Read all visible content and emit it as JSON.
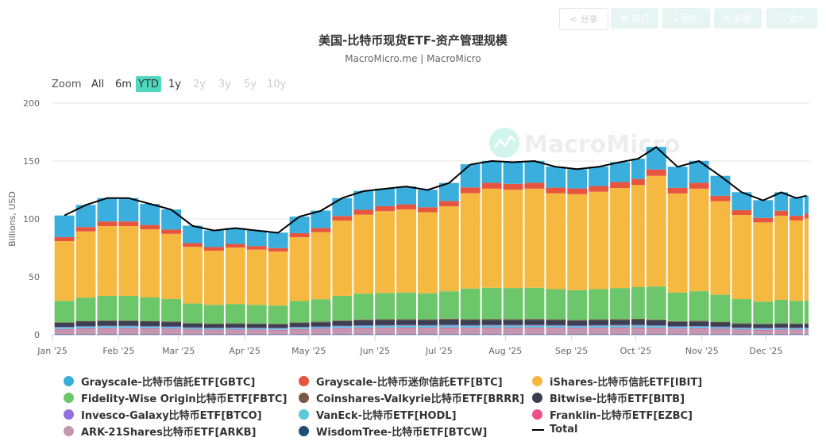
{
  "toolbar": {
    "share": "分享",
    "customize": "自订",
    "image": "图片",
    "draw": "制图",
    "enlarge": "放大"
  },
  "title": "美国-比特币现货ETF-资产管理规模",
  "subtitle": "MacroMicro.me | MacroMicro",
  "range_selector": {
    "label": "Zoom",
    "options": [
      "All",
      "6m",
      "YTD",
      "1y",
      "2y",
      "3y",
      "5y",
      "10y"
    ],
    "selected": "YTD",
    "disabled": [
      "2y",
      "3y",
      "5y",
      "10y"
    ]
  },
  "watermark": "MacroMicro",
  "chart_data": {
    "type": "bar",
    "stacked": true,
    "title": "美国-比特币现货ETF-资产管理规模",
    "ylabel": "Billions, USD",
    "ylim": [
      0,
      200
    ],
    "y_ticks": [
      0,
      50,
      100,
      150,
      200
    ],
    "x_tick_labels": [
      {
        "date": "2025-01-01",
        "label": "Jan '25"
      },
      {
        "date": "2025-02-01",
        "label": "Feb '25"
      },
      {
        "date": "2025-03-01",
        "label": "Mar '25"
      },
      {
        "date": "2025-04-01",
        "label": "Apr '25"
      },
      {
        "date": "2025-05-01",
        "label": "May '25"
      },
      {
        "date": "2025-06-01",
        "label": "Jun '25"
      },
      {
        "date": "2025-07-01",
        "label": "Jul '25"
      },
      {
        "date": "2025-08-01",
        "label": "Aug '25"
      },
      {
        "date": "2025-09-01",
        "label": "Sep '25"
      },
      {
        "date": "2025-10-01",
        "label": "Oct '25"
      },
      {
        "date": "2025-11-01",
        "label": "Nov '25"
      },
      {
        "date": "2025-12-01",
        "label": "Dec '25"
      }
    ],
    "grid": true,
    "legend_position": "bottom",
    "x": [
      "2025-01-02",
      "2025-01-12",
      "2025-01-22",
      "2025-02-01",
      "2025-02-11",
      "2025-02-21",
      "2025-03-03",
      "2025-03-13",
      "2025-03-23",
      "2025-04-02",
      "2025-04-12",
      "2025-04-22",
      "2025-05-02",
      "2025-05-12",
      "2025-05-22",
      "2025-06-01",
      "2025-06-11",
      "2025-06-21",
      "2025-07-01",
      "2025-07-11",
      "2025-07-21",
      "2025-07-31",
      "2025-08-10",
      "2025-08-20",
      "2025-08-30",
      "2025-09-09",
      "2025-09-19",
      "2025-09-29",
      "2025-10-06",
      "2025-10-16",
      "2025-10-26",
      "2025-11-05",
      "2025-11-15",
      "2025-11-25",
      "2025-12-05",
      "2025-12-12",
      "2025-12-19"
    ],
    "series": [
      {
        "name": "Grayscale-比特币信託ETF[GBTC]",
        "color": "#3aaedd",
        "values": [
          18.7,
          19.1,
          20.2,
          20.2,
          18.2,
          17.4,
          15.1,
          14.4,
          13.8,
          13.5,
          13.4,
          14.3,
          15.1,
          15.5,
          16.3,
          15.2,
          15.5,
          15.1,
          15.7,
          20.0,
          18.9,
          18.8,
          18.9,
          18.2,
          16.6,
          16.8,
          17.3,
          17.5,
          19.5,
          18.2,
          18.9,
          17.2,
          15.5,
          15.3,
          16.1,
          15.5,
          15.7
        ]
      },
      {
        "name": "Grayscale-比特币迷你信託ETF[BTC]",
        "color": "#e8553f",
        "values": [
          3.5,
          3.8,
          4.0,
          4.0,
          3.8,
          3.7,
          3.2,
          3.1,
          3.1,
          3.1,
          3.0,
          3.5,
          3.6,
          4.0,
          4.2,
          4.3,
          4.4,
          4.3,
          4.5,
          5.0,
          5.1,
          5.1,
          5.1,
          4.9,
          4.9,
          4.9,
          5.1,
          5.2,
          5.5,
          4.9,
          5.1,
          4.7,
          4.2,
          3.9,
          4.2,
          4.0,
          4.1
        ]
      },
      {
        "name": "iShares-比特币信託ETF[IBIT]",
        "color": "#f5b942",
        "values": [
          51.5,
          57.1,
          60.2,
          60.2,
          58.8,
          56.2,
          48.9,
          46.8,
          48.8,
          47.7,
          46.6,
          55.1,
          57.8,
          64.9,
          68.2,
          70.6,
          71.7,
          70.0,
          73.4,
          82.3,
          85.5,
          84.9,
          85.5,
          82.7,
          82.9,
          84.1,
          86.4,
          88.2,
          95.6,
          85.6,
          88.5,
          80.8,
          72.6,
          68.4,
          72.6,
          69.6,
          70.8
        ]
      },
      {
        "name": "Fidelity-Wise Origin比特币ETF[FBTC]",
        "color": "#6cc66a",
        "values": [
          18.5,
          20.2,
          21.2,
          21.2,
          20.3,
          19.4,
          16.9,
          16.2,
          16.6,
          16.2,
          15.8,
          18.4,
          19.3,
          21.2,
          22.3,
          22.7,
          23.0,
          22.5,
          23.6,
          26.5,
          27.0,
          26.8,
          27.0,
          26.1,
          25.7,
          26.1,
          26.8,
          27.4,
          28.4,
          24.7,
          25.5,
          23.3,
          20.9,
          19.1,
          20.3,
          19.5,
          19.8
        ]
      },
      {
        "name": "Coinshares-Valkyrie比特币ETF[BRRR]",
        "color": "#7a5646",
        "values": [
          0.5,
          0.6,
          0.6,
          0.6,
          0.6,
          0.6,
          0.5,
          0.5,
          0.5,
          0.5,
          0.5,
          0.5,
          0.6,
          0.6,
          0.7,
          0.7,
          0.7,
          0.7,
          0.7,
          0.7,
          0.7,
          0.7,
          0.7,
          0.7,
          0.6,
          0.7,
          0.7,
          0.7,
          0.7,
          0.6,
          0.6,
          0.6,
          0.5,
          0.5,
          0.5,
          0.5,
          0.5
        ]
      },
      {
        "name": "Bitwise-比特币ETF[BITB]",
        "color": "#3b3f52",
        "values": [
          3.6,
          3.9,
          4.1,
          4.1,
          3.9,
          3.7,
          3.3,
          3.1,
          3.2,
          3.1,
          3.0,
          3.5,
          3.7,
          4.1,
          4.3,
          4.4,
          4.4,
          4.3,
          4.6,
          4.4,
          4.5,
          4.4,
          4.5,
          4.3,
          4.3,
          4.3,
          4.4,
          4.5,
          4.3,
          3.8,
          4.0,
          3.6,
          3.2,
          3.1,
          3.2,
          3.1,
          3.2
        ]
      },
      {
        "name": "Invesco-Galaxy比特币ETF[BTCO]",
        "color": "#9370de",
        "values": [
          0.5,
          0.6,
          0.6,
          0.6,
          0.6,
          0.6,
          0.5,
          0.5,
          0.5,
          0.5,
          0.5,
          0.5,
          0.6,
          0.6,
          0.7,
          0.7,
          0.7,
          0.7,
          0.7,
          0.7,
          0.7,
          0.7,
          0.7,
          0.7,
          0.6,
          0.7,
          0.7,
          0.7,
          0.7,
          0.6,
          0.6,
          0.6,
          0.5,
          0.5,
          0.5,
          0.5,
          0.5
        ]
      },
      {
        "name": "VanEck-比特币ETF[HODL]",
        "color": "#5bc8d8",
        "values": [
          1.3,
          1.4,
          1.5,
          1.5,
          1.4,
          1.4,
          1.2,
          1.1,
          1.2,
          1.1,
          1.1,
          1.3,
          1.3,
          1.5,
          1.6,
          1.6,
          1.6,
          1.6,
          1.7,
          1.6,
          1.6,
          1.6,
          1.6,
          1.6,
          1.5,
          1.6,
          1.6,
          1.6,
          1.6,
          1.4,
          1.4,
          1.3,
          1.2,
          1.1,
          1.2,
          1.1,
          1.2
        ]
      },
      {
        "name": "Franklin-比特币ETF[EZBC]",
        "color": "#f0508a",
        "values": [
          0.5,
          0.6,
          0.6,
          0.6,
          0.6,
          0.6,
          0.5,
          0.5,
          0.5,
          0.5,
          0.5,
          0.5,
          0.6,
          0.6,
          0.7,
          0.7,
          0.7,
          0.7,
          0.7,
          0.7,
          0.7,
          0.7,
          0.7,
          0.7,
          0.6,
          0.7,
          0.7,
          0.7,
          0.7,
          0.6,
          0.6,
          0.6,
          0.5,
          0.5,
          0.5,
          0.5,
          0.5
        ]
      },
      {
        "name": "ARK-21Shares比特币ETF[ARKB]",
        "color": "#c496b0",
        "values": [
          4.1,
          4.5,
          4.7,
          4.7,
          4.5,
          4.3,
          3.8,
          3.6,
          3.7,
          3.6,
          3.5,
          4.1,
          4.3,
          4.7,
          4.9,
          5.0,
          5.1,
          5.0,
          5.2,
          5.0,
          5.1,
          5.1,
          5.1,
          5.0,
          4.9,
          5.0,
          5.1,
          5.2,
          4.9,
          4.4,
          4.6,
          4.2,
          3.7,
          3.5,
          3.7,
          3.6,
          3.6
        ]
      },
      {
        "name": "WisdomTree-比特币ETF[BTCW]",
        "color": "#1d4e78",
        "values": [
          0.3,
          0.3,
          0.3,
          0.3,
          0.3,
          0.3,
          0.3,
          0.3,
          0.3,
          0.3,
          0.3,
          0.3,
          0.3,
          0.3,
          0.3,
          0.3,
          0.3,
          0.3,
          0.3,
          0.3,
          0.3,
          0.3,
          0.3,
          0.3,
          0.3,
          0.3,
          0.3,
          0.3,
          0.3,
          0.3,
          0.3,
          0.3,
          0.3,
          0.3,
          0.3,
          0.3,
          0.3
        ]
      }
    ],
    "total": {
      "name": "Total",
      "type": "line",
      "color": "#000000",
      "values": [
        103,
        112,
        118,
        118,
        113,
        108,
        94,
        90,
        92,
        90,
        88,
        102,
        107,
        118,
        124,
        126,
        128,
        125,
        131,
        147,
        150,
        149,
        150,
        145,
        143,
        145,
        149,
        152,
        162,
        145,
        150,
        137,
        123,
        116,
        123,
        118,
        120
      ]
    }
  }
}
